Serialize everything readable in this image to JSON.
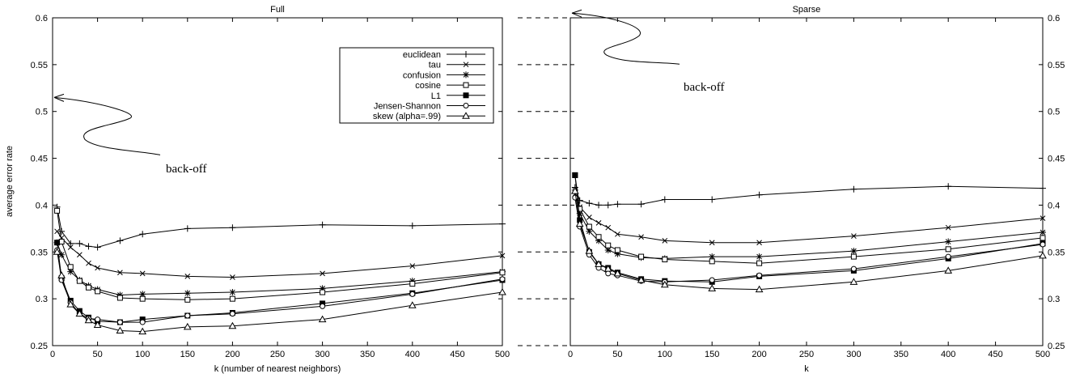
{
  "chart_data": [
    {
      "panel": "left",
      "type": "line",
      "title": "Full",
      "xlabel": "k (number of nearest neighbors)",
      "ylabel": "average error rate",
      "xlim": [
        0,
        500
      ],
      "ylim": [
        0.25,
        0.6
      ],
      "xticks": [
        0,
        50,
        100,
        150,
        200,
        250,
        300,
        350,
        400,
        450,
        500
      ],
      "yticks": [
        0.25,
        0.3,
        0.35,
        0.4,
        0.45,
        0.5,
        0.55,
        0.6
      ],
      "ytick_side": "left",
      "grid": false,
      "legend_position": "top-right",
      "annotation": {
        "text": "back-off",
        "value": 0.515
      },
      "series": [
        {
          "name": "euclidean",
          "marker": "plus",
          "x": [
            5,
            10,
            20,
            30,
            40,
            50,
            75,
            100,
            150,
            200,
            300,
            400,
            500
          ],
          "values": [
            0.398,
            0.372,
            0.359,
            0.359,
            0.356,
            0.355,
            0.362,
            0.369,
            0.375,
            0.376,
            0.379,
            0.378,
            0.38
          ]
        },
        {
          "name": "tau",
          "marker": "x",
          "x": [
            5,
            10,
            20,
            30,
            40,
            50,
            75,
            100,
            150,
            200,
            300,
            400,
            500
          ],
          "values": [
            0.372,
            0.365,
            0.355,
            0.347,
            0.338,
            0.333,
            0.328,
            0.327,
            0.324,
            0.323,
            0.327,
            0.335,
            0.346
          ]
        },
        {
          "name": "confusion",
          "marker": "star",
          "x": [
            5,
            10,
            20,
            30,
            40,
            50,
            75,
            100,
            150,
            200,
            300,
            400,
            500
          ],
          "values": [
            0.36,
            0.347,
            0.329,
            0.32,
            0.314,
            0.31,
            0.304,
            0.305,
            0.306,
            0.307,
            0.311,
            0.319,
            0.329
          ]
        },
        {
          "name": "cosine",
          "marker": "square-open",
          "x": [
            5,
            10,
            20,
            30,
            40,
            50,
            75,
            100,
            150,
            200,
            300,
            400,
            500
          ],
          "values": [
            0.394,
            0.361,
            0.334,
            0.319,
            0.312,
            0.308,
            0.301,
            0.3,
            0.299,
            0.3,
            0.307,
            0.316,
            0.328
          ]
        },
        {
          "name": "L1",
          "marker": "square-filled",
          "x": [
            5,
            10,
            20,
            30,
            40,
            50,
            75,
            100,
            150,
            200,
            300,
            400,
            500
          ],
          "values": [
            0.36,
            0.322,
            0.298,
            0.287,
            0.28,
            0.276,
            0.275,
            0.278,
            0.282,
            0.285,
            0.295,
            0.306,
            0.32
          ]
        },
        {
          "name": "Jensen-Shannon",
          "marker": "circle-open",
          "x": [
            5,
            10,
            20,
            30,
            40,
            50,
            75,
            100,
            150,
            200,
            300,
            400,
            500
          ],
          "values": [
            0.352,
            0.32,
            0.296,
            0.284,
            0.279,
            0.278,
            0.275,
            0.275,
            0.282,
            0.284,
            0.292,
            0.305,
            0.321
          ]
        },
        {
          "name": "skew (alpha=.99)",
          "marker": "triangle-open",
          "x": [
            5,
            10,
            20,
            30,
            40,
            50,
            75,
            100,
            150,
            200,
            300,
            400,
            500
          ],
          "values": [
            0.35,
            0.325,
            0.294,
            0.284,
            0.277,
            0.272,
            0.266,
            0.265,
            0.27,
            0.271,
            0.278,
            0.293,
            0.307
          ]
        }
      ]
    },
    {
      "panel": "right",
      "type": "line",
      "title": "Sparse",
      "xlabel": "k",
      "ylabel": "",
      "xlim": [
        0,
        500
      ],
      "ylim": [
        0.25,
        0.6
      ],
      "xticks": [
        0,
        50,
        100,
        150,
        200,
        250,
        300,
        350,
        400,
        450,
        500
      ],
      "yticks": [
        0.25,
        0.3,
        0.35,
        0.4,
        0.45,
        0.5,
        0.55,
        0.6
      ],
      "ytick_side": "right",
      "grid": false,
      "legend_position": "none",
      "annotation": {
        "text": "back-off",
        "value": 0.605
      },
      "series": [
        {
          "name": "euclidean",
          "marker": "plus",
          "x": [
            5,
            10,
            20,
            30,
            40,
            50,
            75,
            100,
            150,
            200,
            300,
            400,
            500
          ],
          "values": [
            0.419,
            0.405,
            0.402,
            0.4,
            0.4,
            0.401,
            0.401,
            0.406,
            0.406,
            0.411,
            0.417,
            0.42,
            0.418
          ]
        },
        {
          "name": "tau",
          "marker": "x",
          "x": [
            5,
            10,
            20,
            30,
            40,
            50,
            75,
            100,
            150,
            200,
            300,
            400,
            500
          ],
          "values": [
            0.412,
            0.398,
            0.387,
            0.381,
            0.376,
            0.369,
            0.366,
            0.362,
            0.36,
            0.36,
            0.367,
            0.376,
            0.386
          ]
        },
        {
          "name": "confusion",
          "marker": "star",
          "x": [
            5,
            10,
            20,
            30,
            40,
            50,
            75,
            100,
            150,
            200,
            300,
            400,
            500
          ],
          "values": [
            0.416,
            0.391,
            0.372,
            0.362,
            0.352,
            0.348,
            0.344,
            0.343,
            0.345,
            0.345,
            0.351,
            0.361,
            0.371
          ]
        },
        {
          "name": "cosine",
          "marker": "square-open",
          "x": [
            5,
            10,
            20,
            30,
            40,
            50,
            75,
            100,
            150,
            200,
            300,
            400,
            500
          ],
          "values": [
            0.432,
            0.396,
            0.377,
            0.366,
            0.357,
            0.352,
            0.345,
            0.342,
            0.34,
            0.338,
            0.345,
            0.353,
            0.365
          ]
        },
        {
          "name": "L1",
          "marker": "square-filled",
          "x": [
            5,
            10,
            20,
            30,
            40,
            50,
            75,
            100,
            150,
            200,
            300,
            400,
            500
          ],
          "values": [
            0.432,
            0.384,
            0.35,
            0.337,
            0.333,
            0.328,
            0.321,
            0.319,
            0.318,
            0.324,
            0.33,
            0.343,
            0.359
          ]
        },
        {
          "name": "Jensen-Shannon",
          "marker": "circle-open",
          "x": [
            5,
            10,
            20,
            30,
            40,
            50,
            75,
            100,
            150,
            200,
            300,
            400,
            500
          ],
          "values": [
            0.408,
            0.377,
            0.347,
            0.333,
            0.327,
            0.325,
            0.319,
            0.318,
            0.32,
            0.325,
            0.332,
            0.345,
            0.358
          ]
        },
        {
          "name": "skew (alpha=.99)",
          "marker": "triangle-open",
          "x": [
            5,
            10,
            20,
            30,
            40,
            50,
            75,
            100,
            150,
            200,
            300,
            400,
            500
          ],
          "values": [
            0.415,
            0.38,
            0.351,
            0.337,
            0.332,
            0.327,
            0.32,
            0.315,
            0.311,
            0.31,
            0.318,
            0.33,
            0.346
          ]
        }
      ]
    }
  ]
}
